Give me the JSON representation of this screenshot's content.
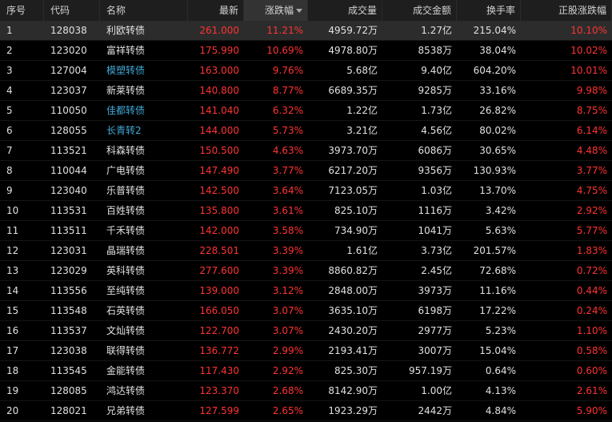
{
  "headers": {
    "seq": "序号",
    "code": "代码",
    "name": "名称",
    "latest": "最新",
    "change_pct": "涨跌幅",
    "volume": "成交量",
    "amount": "成交金额",
    "turnover": "换手率",
    "stock_change_pct": "正股涨跌幅"
  },
  "sort": {
    "column": "change_pct",
    "direction": "desc"
  },
  "colors": {
    "up": "#ff3333",
    "link": "#3fa9d6",
    "text": "#e1e1e1",
    "header_bg": "#1e1e1e",
    "selected_bg": "#2c2c2c"
  },
  "rows": [
    {
      "seq": "1",
      "code": "128038",
      "name": "利欧转债",
      "latest": "261.000",
      "change_pct": "11.21%",
      "volume": "4959.72万",
      "amount": "1.27亿",
      "turnover": "215.04%",
      "stock_change_pct": "10.10%",
      "name_link": false,
      "selected": true
    },
    {
      "seq": "2",
      "code": "123020",
      "name": "富祥转债",
      "latest": "175.990",
      "change_pct": "10.69%",
      "volume": "4978.80万",
      "amount": "8538万",
      "turnover": "38.04%",
      "stock_change_pct": "10.02%",
      "name_link": false
    },
    {
      "seq": "3",
      "code": "127004",
      "name": "模塑转债",
      "latest": "163.000",
      "change_pct": "9.76%",
      "volume": "5.68亿",
      "amount": "9.40亿",
      "turnover": "604.20%",
      "stock_change_pct": "10.01%",
      "name_link": true
    },
    {
      "seq": "4",
      "code": "123037",
      "name": "新莱转债",
      "latest": "140.800",
      "change_pct": "8.77%",
      "volume": "6689.35万",
      "amount": "9285万",
      "turnover": "33.16%",
      "stock_change_pct": "9.98%",
      "name_link": false
    },
    {
      "seq": "5",
      "code": "110050",
      "name": "佳都转债",
      "latest": "141.040",
      "change_pct": "6.32%",
      "volume": "1.22亿",
      "amount": "1.73亿",
      "turnover": "26.82%",
      "stock_change_pct": "8.75%",
      "name_link": true
    },
    {
      "seq": "6",
      "code": "128055",
      "name": "长青转2",
      "latest": "144.000",
      "change_pct": "5.73%",
      "volume": "3.21亿",
      "amount": "4.56亿",
      "turnover": "80.02%",
      "stock_change_pct": "6.14%",
      "name_link": true
    },
    {
      "seq": "7",
      "code": "113521",
      "name": "科森转债",
      "latest": "150.500",
      "change_pct": "4.63%",
      "volume": "3973.70万",
      "amount": "6086万",
      "turnover": "30.65%",
      "stock_change_pct": "4.48%",
      "name_link": false
    },
    {
      "seq": "8",
      "code": "110044",
      "name": "广电转债",
      "latest": "147.490",
      "change_pct": "3.77%",
      "volume": "6217.20万",
      "amount": "9356万",
      "turnover": "130.93%",
      "stock_change_pct": "3.77%",
      "name_link": false
    },
    {
      "seq": "9",
      "code": "123040",
      "name": "乐普转债",
      "latest": "142.500",
      "change_pct": "3.64%",
      "volume": "7123.05万",
      "amount": "1.03亿",
      "turnover": "13.70%",
      "stock_change_pct": "4.75%",
      "name_link": false
    },
    {
      "seq": "10",
      "code": "113531",
      "name": "百姓转债",
      "latest": "135.800",
      "change_pct": "3.61%",
      "volume": "825.10万",
      "amount": "1116万",
      "turnover": "3.42%",
      "stock_change_pct": "2.92%",
      "name_link": false
    },
    {
      "seq": "11",
      "code": "113511",
      "name": "千禾转债",
      "latest": "142.000",
      "change_pct": "3.58%",
      "volume": "734.90万",
      "amount": "1041万",
      "turnover": "5.63%",
      "stock_change_pct": "5.77%",
      "name_link": false
    },
    {
      "seq": "12",
      "code": "123031",
      "name": "晶瑞转债",
      "latest": "228.501",
      "change_pct": "3.39%",
      "volume": "1.61亿",
      "amount": "3.73亿",
      "turnover": "201.57%",
      "stock_change_pct": "1.83%",
      "name_link": false
    },
    {
      "seq": "13",
      "code": "123029",
      "name": "英科转债",
      "latest": "277.600",
      "change_pct": "3.39%",
      "volume": "8860.82万",
      "amount": "2.45亿",
      "turnover": "72.68%",
      "stock_change_pct": "0.72%",
      "name_link": false
    },
    {
      "seq": "14",
      "code": "113556",
      "name": "至纯转债",
      "latest": "139.000",
      "change_pct": "3.12%",
      "volume": "2848.00万",
      "amount": "3973万",
      "turnover": "11.16%",
      "stock_change_pct": "0.44%",
      "name_link": false
    },
    {
      "seq": "15",
      "code": "113548",
      "name": "石英转债",
      "latest": "166.050",
      "change_pct": "3.07%",
      "volume": "3635.10万",
      "amount": "6198万",
      "turnover": "17.22%",
      "stock_change_pct": "0.24%",
      "name_link": false
    },
    {
      "seq": "16",
      "code": "113537",
      "name": "文灿转债",
      "latest": "122.700",
      "change_pct": "3.07%",
      "volume": "2430.20万",
      "amount": "2977万",
      "turnover": "5.23%",
      "stock_change_pct": "1.10%",
      "name_link": false
    },
    {
      "seq": "17",
      "code": "123038",
      "name": "联得转债",
      "latest": "136.772",
      "change_pct": "2.99%",
      "volume": "2193.41万",
      "amount": "3007万",
      "turnover": "15.04%",
      "stock_change_pct": "0.58%",
      "name_link": false
    },
    {
      "seq": "18",
      "code": "113545",
      "name": "金能转债",
      "latest": "117.430",
      "change_pct": "2.92%",
      "volume": "825.30万",
      "amount": "957.19万",
      "turnover": "0.64%",
      "stock_change_pct": "0.60%",
      "name_link": false
    },
    {
      "seq": "19",
      "code": "128085",
      "name": "鸿达转债",
      "latest": "123.370",
      "change_pct": "2.68%",
      "volume": "8142.90万",
      "amount": "1.00亿",
      "turnover": "4.13%",
      "stock_change_pct": "2.61%",
      "name_link": false
    },
    {
      "seq": "20",
      "code": "128021",
      "name": "兄弟转债",
      "latest": "127.599",
      "change_pct": "2.65%",
      "volume": "1923.29万",
      "amount": "2442万",
      "turnover": "4.84%",
      "stock_change_pct": "5.90%",
      "name_link": false
    }
  ]
}
